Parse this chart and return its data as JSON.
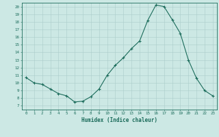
{
  "title": "",
  "xlabel": "Humidex (Indice chaleur)",
  "ylabel": "",
  "bg_color": "#cce8e4",
  "line_color": "#1a6b5a",
  "marker_color": "#1a6b5a",
  "grid_color": "#aaccca",
  "axis_color": "#1a6b5a",
  "xlim": [
    -0.5,
    23.5
  ],
  "ylim": [
    6.5,
    20.5
  ],
  "yticks": [
    7,
    8,
    9,
    10,
    11,
    12,
    13,
    14,
    15,
    16,
    17,
    18,
    19,
    20
  ],
  "xticks": [
    0,
    1,
    2,
    3,
    4,
    5,
    6,
    7,
    8,
    9,
    10,
    11,
    12,
    13,
    14,
    15,
    16,
    17,
    18,
    19,
    20,
    21,
    22,
    23
  ],
  "x": [
    0,
    1,
    2,
    3,
    4,
    5,
    6,
    7,
    8,
    9,
    10,
    11,
    12,
    13,
    14,
    15,
    16,
    17,
    18,
    19,
    20,
    21,
    22,
    23
  ],
  "y": [
    10.7,
    10.0,
    9.8,
    9.2,
    8.6,
    8.3,
    7.5,
    7.6,
    8.2,
    9.2,
    11.0,
    12.3,
    13.3,
    14.5,
    15.5,
    18.2,
    20.2,
    20.0,
    18.3,
    16.5,
    13.0,
    10.6,
    9.0,
    8.3
  ]
}
